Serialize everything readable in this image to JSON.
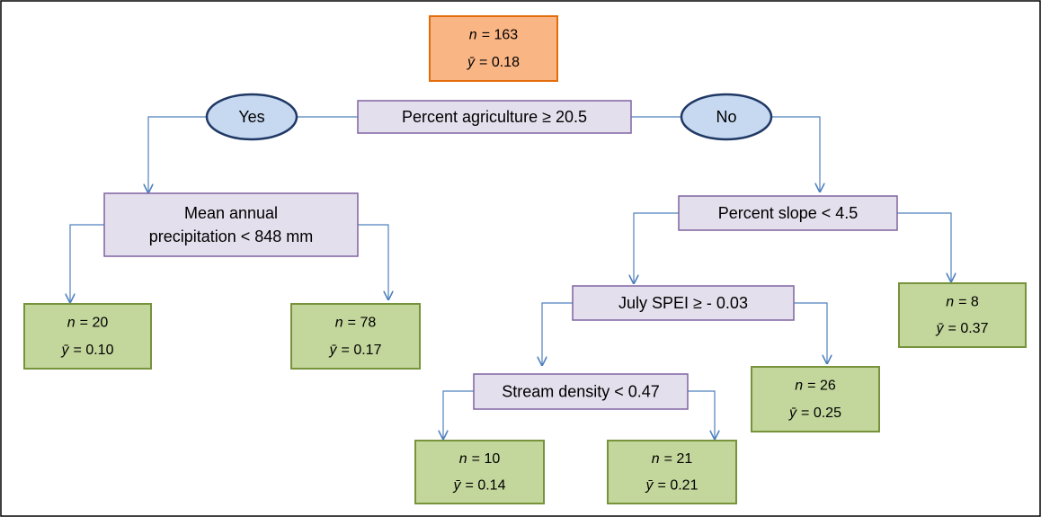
{
  "root": {
    "lines": [
      {
        "symbol": "n",
        "text": "= 163"
      },
      {
        "symbol": "ȳ",
        "text": "= 0.18"
      }
    ]
  },
  "branches": {
    "yes": "Yes",
    "no": "No"
  },
  "splits": [
    {
      "label": [
        "Percent agriculture ≥ 20.5"
      ]
    },
    {
      "label": [
        "Mean annual",
        "precipitation < 848 mm"
      ]
    },
    {
      "label": [
        "Percent slope < 4.5"
      ]
    },
    {
      "label": [
        "July SPEI ≥ - 0.03"
      ]
    },
    {
      "label": [
        "Stream density < 0.47"
      ]
    }
  ],
  "leaves": [
    {
      "lines": [
        {
          "symbol": "n",
          "text": "= 20"
        },
        {
          "symbol": "ȳ",
          "text": "= 0.10"
        }
      ]
    },
    {
      "lines": [
        {
          "symbol": "n",
          "text": "= 78"
        },
        {
          "symbol": "ȳ",
          "text": "= 0.17"
        }
      ]
    },
    {
      "lines": [
        {
          "symbol": "n",
          "text": "= 8"
        },
        {
          "symbol": "ȳ",
          "text": "= 0.37"
        }
      ]
    },
    {
      "lines": [
        {
          "symbol": "n",
          "text": "= 26"
        },
        {
          "symbol": "ȳ",
          "text": "= 0.25"
        }
      ]
    },
    {
      "lines": [
        {
          "symbol": "n",
          "text": "= 10"
        },
        {
          "symbol": "ȳ",
          "text": "= 0.14"
        }
      ]
    },
    {
      "lines": [
        {
          "symbol": "n",
          "text": "= 21"
        },
        {
          "symbol": "ȳ",
          "text": "= 0.21"
        }
      ]
    }
  ]
}
